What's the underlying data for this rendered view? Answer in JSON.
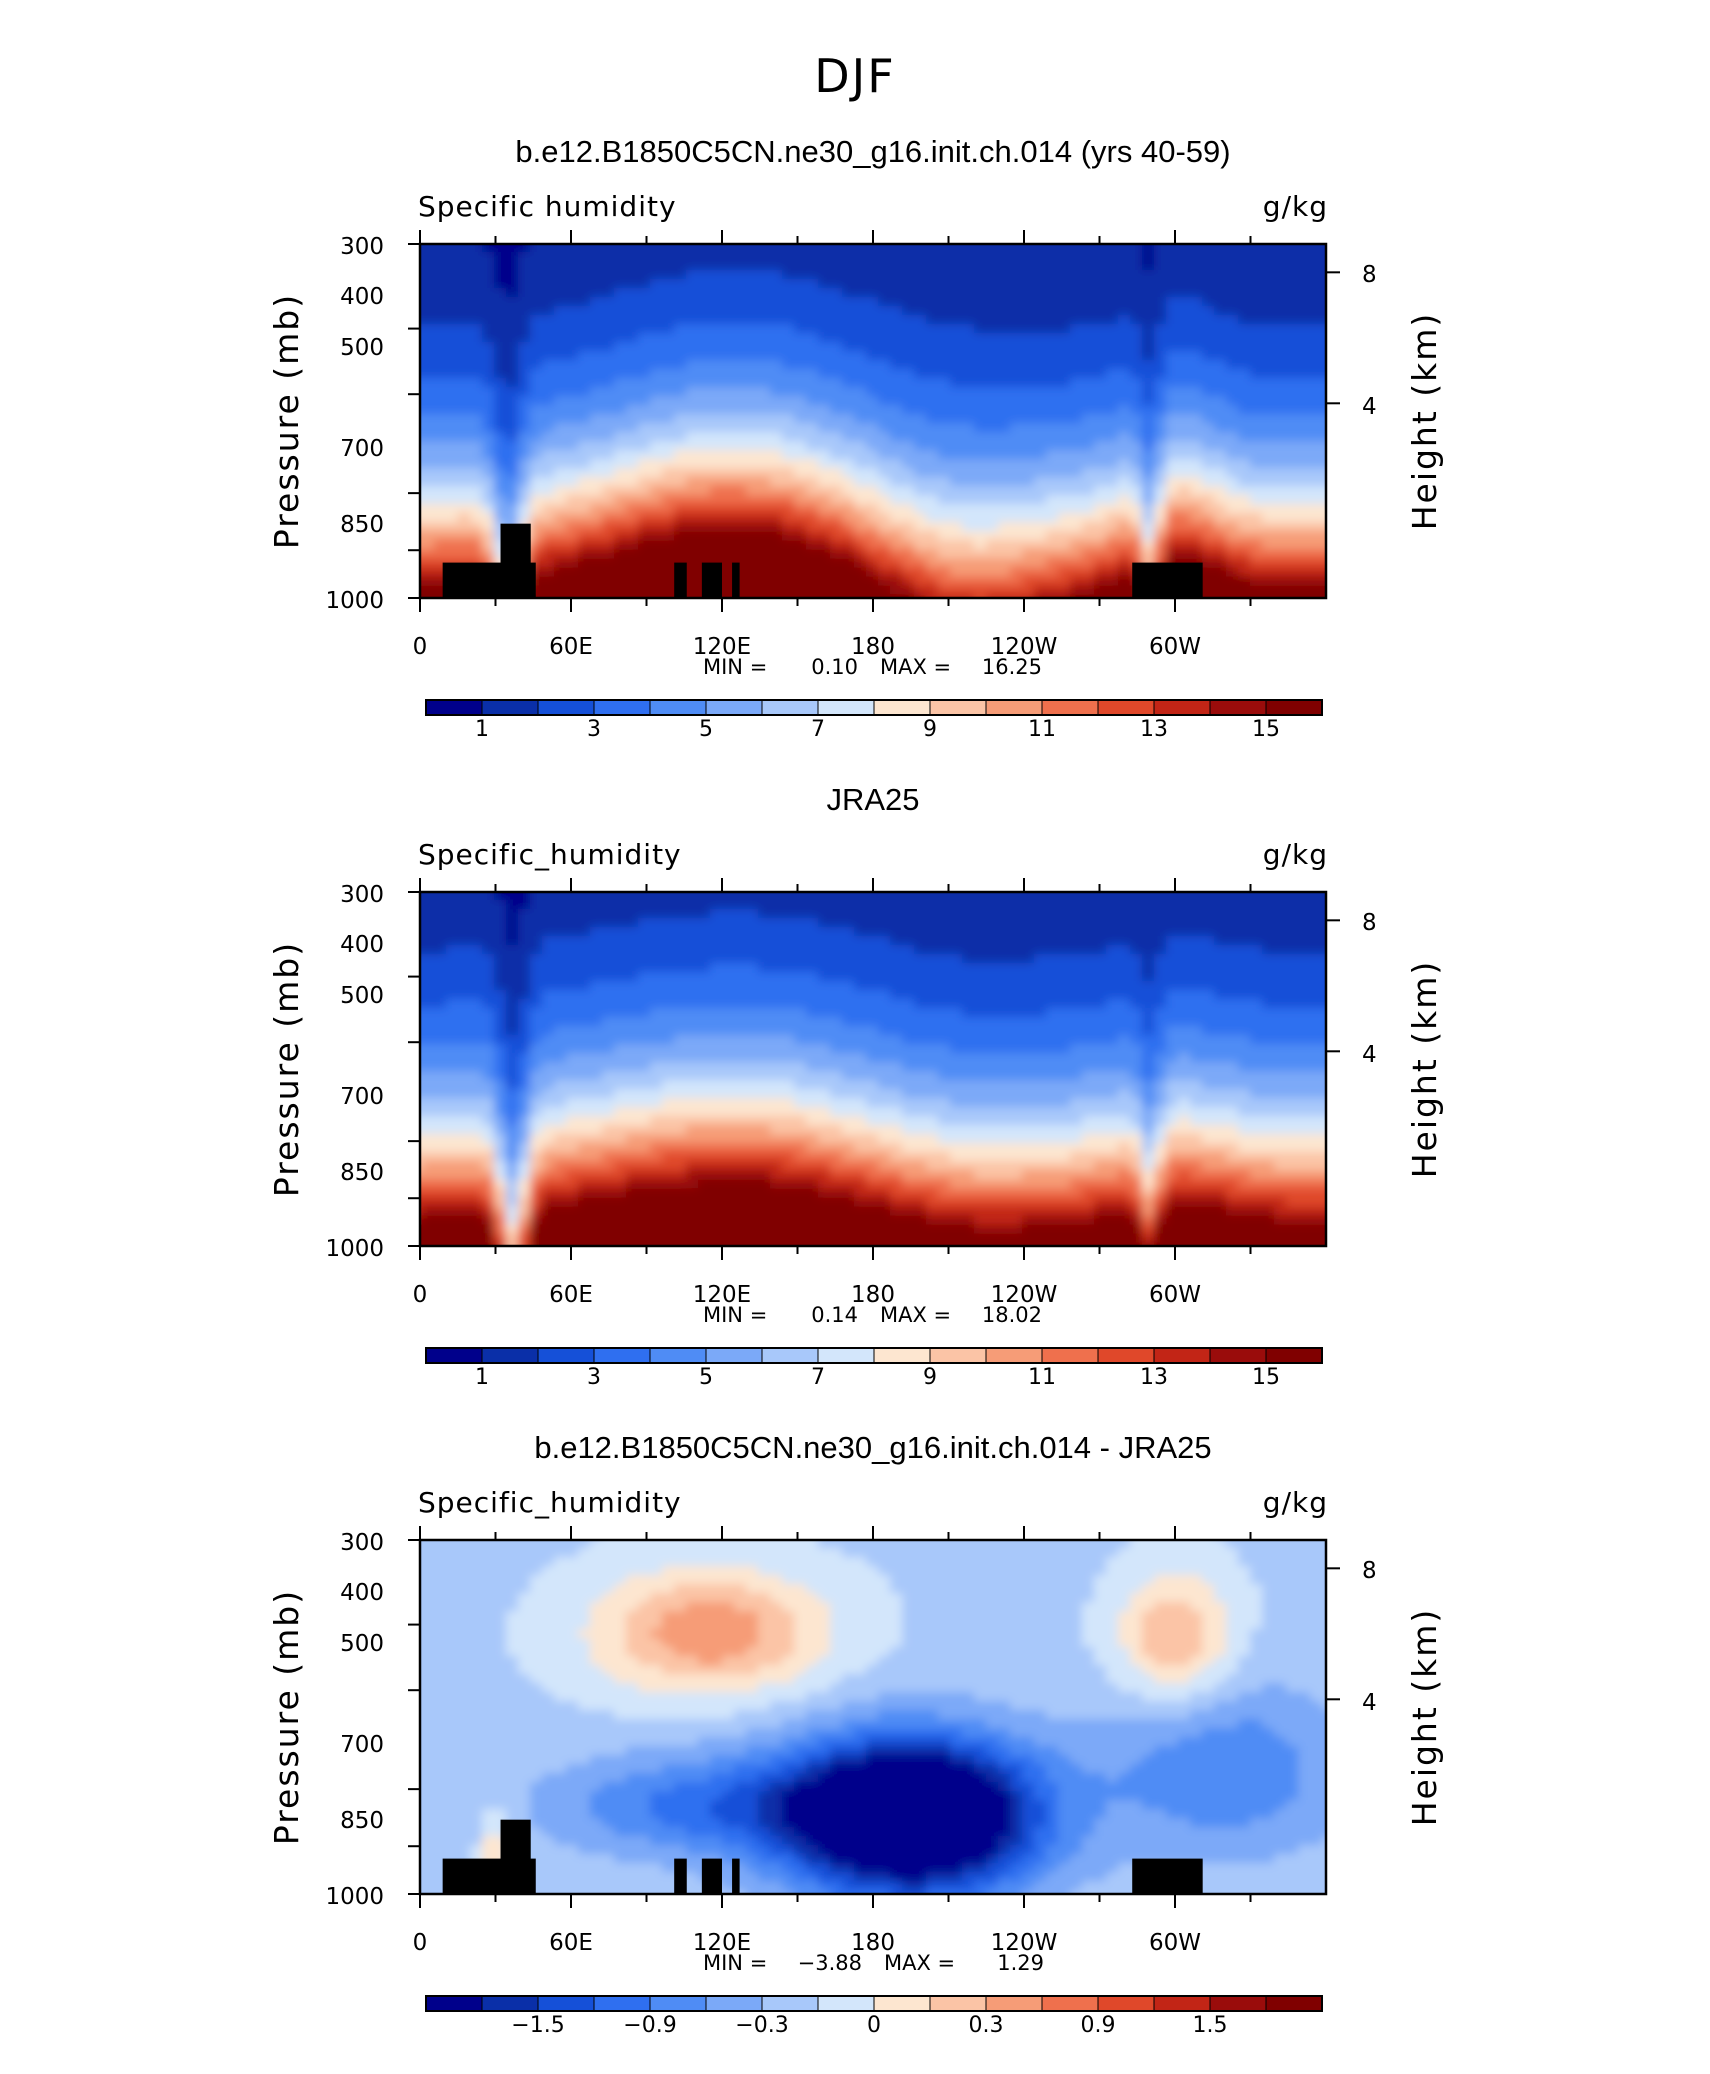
{
  "figure": {
    "title": "DJF"
  },
  "chart_data": [
    {
      "type": "heatmap",
      "title": "b.e12.B1850C5CN.ne30_g16.init.ch.014 (yrs 40-59)",
      "left_label": "Specific  humidity",
      "right_label": "g/kg",
      "xlabel": "",
      "ylabel": "Pressure  (mb)",
      "ylabel_right": "Height  (km)",
      "x_ticks": [
        "0",
        "60E",
        "120E",
        "180",
        "120W",
        "60W"
      ],
      "y_ticks": [
        "300",
        "400",
        "500",
        "700",
        "850",
        "1000"
      ],
      "right_ticks": [
        "8",
        "4"
      ],
      "xlim": [
        0,
        360
      ],
      "ylim": [
        1000,
        300
      ],
      "stats": {
        "min_label": "MIN =",
        "min": "0.10",
        "max_label": "MAX =",
        "max": "16.25"
      },
      "colorbar": {
        "labels": [
          "1",
          "3",
          "5",
          "7",
          "9",
          "11",
          "13",
          "15"
        ]
      },
      "topography": true
    },
    {
      "type": "heatmap",
      "title": "JRA25",
      "left_label": "Specific_humidity",
      "right_label": "g/kg",
      "xlabel": "",
      "ylabel": "Pressure  (mb)",
      "ylabel_right": "Height  (km)",
      "x_ticks": [
        "0",
        "60E",
        "120E",
        "180",
        "120W",
        "60W"
      ],
      "y_ticks": [
        "300",
        "400",
        "500",
        "700",
        "850",
        "1000"
      ],
      "right_ticks": [
        "8",
        "4"
      ],
      "xlim": [
        0,
        360
      ],
      "ylim": [
        1000,
        300
      ],
      "stats": {
        "min_label": "MIN =",
        "min": "0.14",
        "max_label": "MAX =",
        "max": "18.02"
      },
      "colorbar": {
        "labels": [
          "1",
          "3",
          "5",
          "7",
          "9",
          "11",
          "13",
          "15"
        ]
      },
      "topography": false
    },
    {
      "type": "heatmap",
      "title": "b.e12.B1850C5CN.ne30_g16.init.ch.014 - JRA25",
      "left_label": "Specific_humidity",
      "right_label": "g/kg",
      "xlabel": "",
      "ylabel": "Pressure  (mb)",
      "ylabel_right": "Height  (km)",
      "x_ticks": [
        "0",
        "60E",
        "120E",
        "180",
        "120W",
        "60W"
      ],
      "y_ticks": [
        "300",
        "400",
        "500",
        "700",
        "850",
        "1000"
      ],
      "right_ticks": [
        "8",
        "4"
      ],
      "xlim": [
        0,
        360
      ],
      "ylim": [
        1000,
        300
      ],
      "stats": {
        "min_label": "MIN =",
        "min": "−3.88",
        "max_label": "MAX =",
        "max": "1.29"
      },
      "colorbar": {
        "labels": [
          "−1.5",
          "−0.9",
          "−0.3",
          "0",
          "0.3",
          "0.9",
          "1.5"
        ]
      },
      "topography": true
    }
  ],
  "colors": {
    "palette": [
      "#00008b",
      "#0a2fa8",
      "#1550d8",
      "#2f6ff0",
      "#4f8cf5",
      "#7ba9f8",
      "#a8c8fa",
      "#d3e6fb",
      "#fde6d0",
      "#fbc4a6",
      "#f69c77",
      "#ef704d",
      "#e0482a",
      "#c22516",
      "#9a0c0b",
      "#800000"
    ],
    "frame": "#000000",
    "topography": "#000000"
  }
}
